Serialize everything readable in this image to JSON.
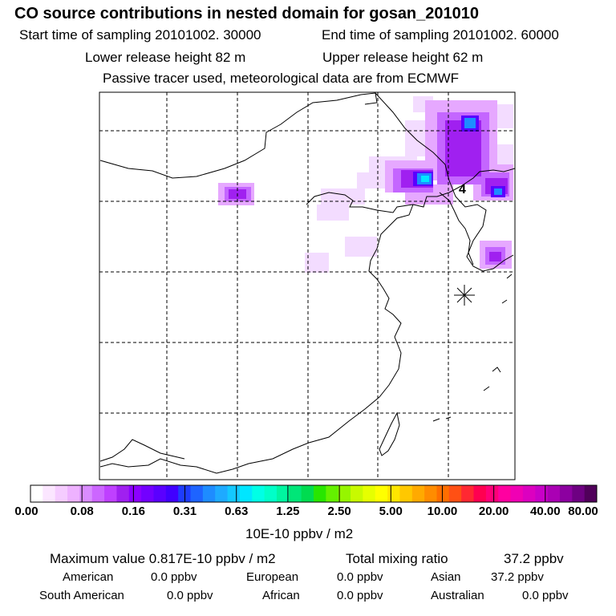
{
  "header": {
    "title": "CO  source contributions in nested domain for gosan_201010",
    "start_label": "Start time of sampling 20101002. 30000",
    "end_label": "End time of sampling 20101002. 60000",
    "lower_label": "Lower release height   82 m",
    "upper_label": "Upper release height   62 m",
    "note": "Passive tracer used, meteorological data are from ECMWF"
  },
  "map": {
    "region_marker": "4",
    "receptor_symbol": "✱"
  },
  "colorbar": {
    "ticks": [
      "0.00",
      "0.08",
      "0.16",
      "0.31",
      "0.63",
      "1.25",
      "2.50",
      "5.00",
      "10.00",
      "20.00",
      "40.00",
      "80.00"
    ],
    "colors": [
      "#ffffff",
      "#fbe6ff",
      "#f5ccff",
      "#eeb2ff",
      "#d98cff",
      "#cc66ff",
      "#bf40ff",
      "#a020f0",
      "#8c00ff",
      "#7300ff",
      "#5a00ff",
      "#4000ff",
      "#1e3cff",
      "#1e64ff",
      "#1e8cff",
      "#1eaaff",
      "#14c8ff",
      "#00e6ff",
      "#00ffe6",
      "#00ffc8",
      "#00f5a0",
      "#00e678",
      "#00dc50",
      "#28e600",
      "#64f000",
      "#96f500",
      "#c8fa00",
      "#e6ff00",
      "#ffff00",
      "#ffe600",
      "#ffc800",
      "#ffaa00",
      "#ff8c00",
      "#ff6e00",
      "#ff5014",
      "#ff2832",
      "#ff0050",
      "#ff0078",
      "#ff00a0",
      "#f000b4",
      "#dc00c0",
      "#c800c8",
      "#aa00b4",
      "#8c00a0",
      "#6e0082",
      "#50005a"
    ],
    "unit": "10E-10 ppbv / m2"
  },
  "footer": {
    "max_label": "Maximum value  0.817E-10 ppbv / m2",
    "total_label": "Total mixing ratio",
    "total_value": "37.2 ppbv",
    "regions": [
      {
        "name": "American",
        "value": "0.0 ppbv"
      },
      {
        "name": "European",
        "value": "0.0 ppbv"
      },
      {
        "name": "Asian",
        "value": "37.2 ppbv"
      },
      {
        "name": "South American",
        "value": "0.0 ppbv"
      },
      {
        "name": "African",
        "value": "0.0 ppbv"
      },
      {
        "name": "Australian",
        "value": "0.0 ppbv"
      }
    ]
  }
}
